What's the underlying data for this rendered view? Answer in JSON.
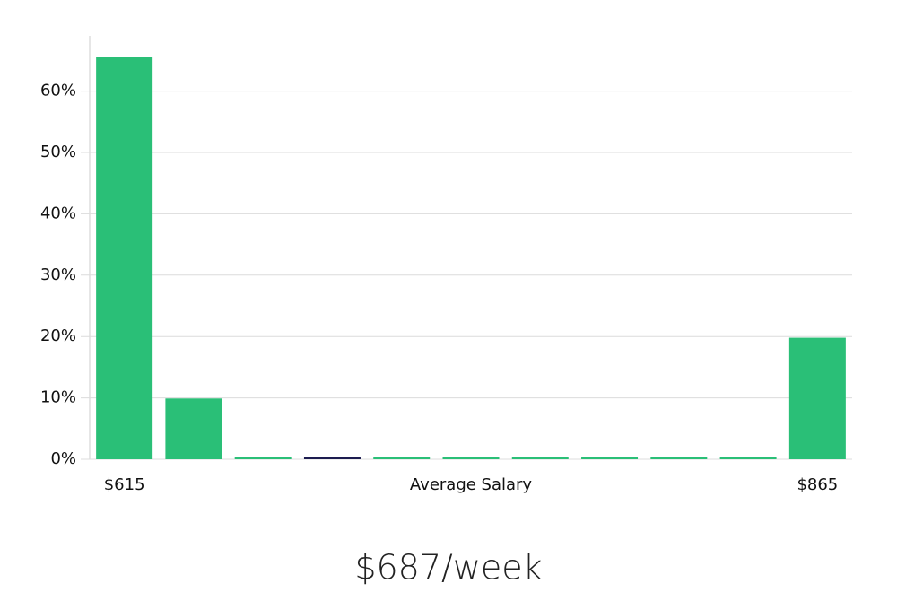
{
  "chart_data": {
    "type": "bar",
    "categories": [
      "$615",
      null,
      null,
      null,
      null,
      null,
      null,
      null,
      null,
      null,
      "$865"
    ],
    "values": [
      65.5,
      9.9,
      0,
      0,
      0,
      0,
      0,
      0,
      0,
      0,
      19.8
    ],
    "colors": [
      "#2abf77",
      "#2abf77",
      "#2abf77",
      "#1c1c4f",
      "#2abf77",
      "#2abf77",
      "#2abf77",
      "#2abf77",
      "#2abf77",
      "#2abf77",
      "#2abf77"
    ],
    "x_label": "Average Salary",
    "footer": "$687/week",
    "ylim": [
      0,
      69
    ],
    "yticks": [
      {
        "value": 0,
        "label": "0%"
      },
      {
        "value": 10,
        "label": "10%"
      },
      {
        "value": 20,
        "label": "20%"
      },
      {
        "value": 30,
        "label": "30%"
      },
      {
        "value": 40,
        "label": "40%"
      },
      {
        "value": 50,
        "label": "50%"
      },
      {
        "value": 60,
        "label": "60%"
      }
    ],
    "grid": true
  }
}
